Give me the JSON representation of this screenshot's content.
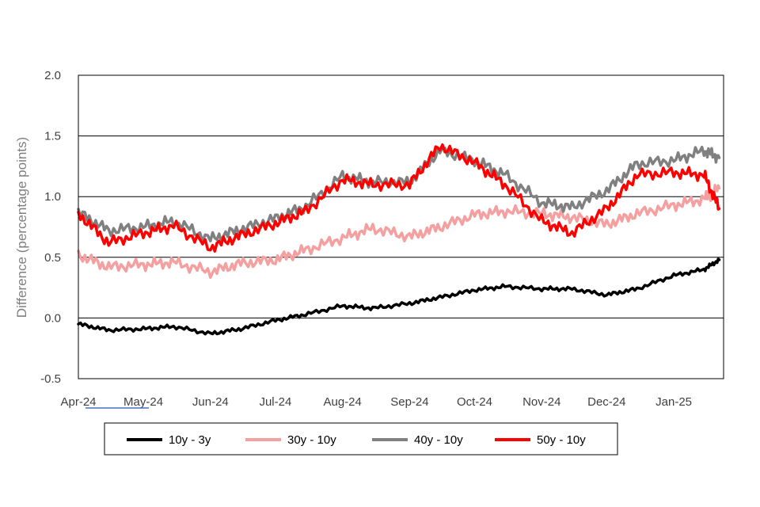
{
  "chart_data": {
    "type": "line",
    "title": "",
    "xlabel": "",
    "ylabel": "Difference (percentage points)",
    "ylim": [
      -0.5,
      2.0
    ],
    "yticks": [
      "2.0",
      "1.5",
      "1.0",
      "0.5",
      "0.0",
      "-0.5"
    ],
    "categories": [
      "Apr-24",
      "May-24",
      "Jun-24",
      "Jul-24",
      "Aug-24",
      "Sep-24",
      "Oct-24",
      "Nov-24",
      "Dec-24",
      "Jan-25"
    ],
    "grid": true,
    "legend_position": "bottom",
    "x": [
      "2024-04-01",
      "2024-04-15",
      "2024-05-01",
      "2024-05-15",
      "2024-06-01",
      "2024-06-15",
      "2024-07-01",
      "2024-07-15",
      "2024-08-01",
      "2024-08-15",
      "2024-09-01",
      "2024-09-15",
      "2024-10-01",
      "2024-10-15",
      "2024-11-01",
      "2024-11-15",
      "2024-12-01",
      "2024-12-15",
      "2025-01-01",
      "2025-01-15",
      "2025-01-22"
    ],
    "series": [
      {
        "name": "10y - 3y",
        "color": "#000000",
        "values": [
          -0.05,
          -0.1,
          -0.09,
          -0.07,
          -0.13,
          -0.09,
          -0.02,
          0.03,
          0.1,
          0.08,
          0.12,
          0.17,
          0.23,
          0.26,
          0.24,
          0.24,
          0.19,
          0.24,
          0.35,
          0.4,
          0.48
        ]
      },
      {
        "name": "30y - 10y",
        "color": "#f4a0a0",
        "values": [
          0.52,
          0.42,
          0.44,
          0.46,
          0.38,
          0.45,
          0.48,
          0.56,
          0.66,
          0.74,
          0.67,
          0.75,
          0.85,
          0.88,
          0.86,
          0.83,
          0.77,
          0.86,
          0.93,
          0.98,
          1.07
        ]
      },
      {
        "name": "40y - 10y",
        "color": "#808080",
        "values": [
          0.87,
          0.72,
          0.75,
          0.8,
          0.65,
          0.73,
          0.82,
          0.92,
          1.17,
          1.12,
          1.12,
          1.38,
          1.3,
          1.18,
          0.95,
          0.91,
          1.05,
          1.27,
          1.3,
          1.38,
          1.32
        ]
      },
      {
        "name": "50y - 10y",
        "color": "#ff0000",
        "values": [
          0.86,
          0.62,
          0.7,
          0.76,
          0.58,
          0.68,
          0.78,
          0.88,
          1.14,
          1.1,
          1.1,
          1.42,
          1.28,
          1.1,
          0.8,
          0.7,
          0.9,
          1.18,
          1.2,
          1.18,
          0.9
        ]
      }
    ]
  }
}
